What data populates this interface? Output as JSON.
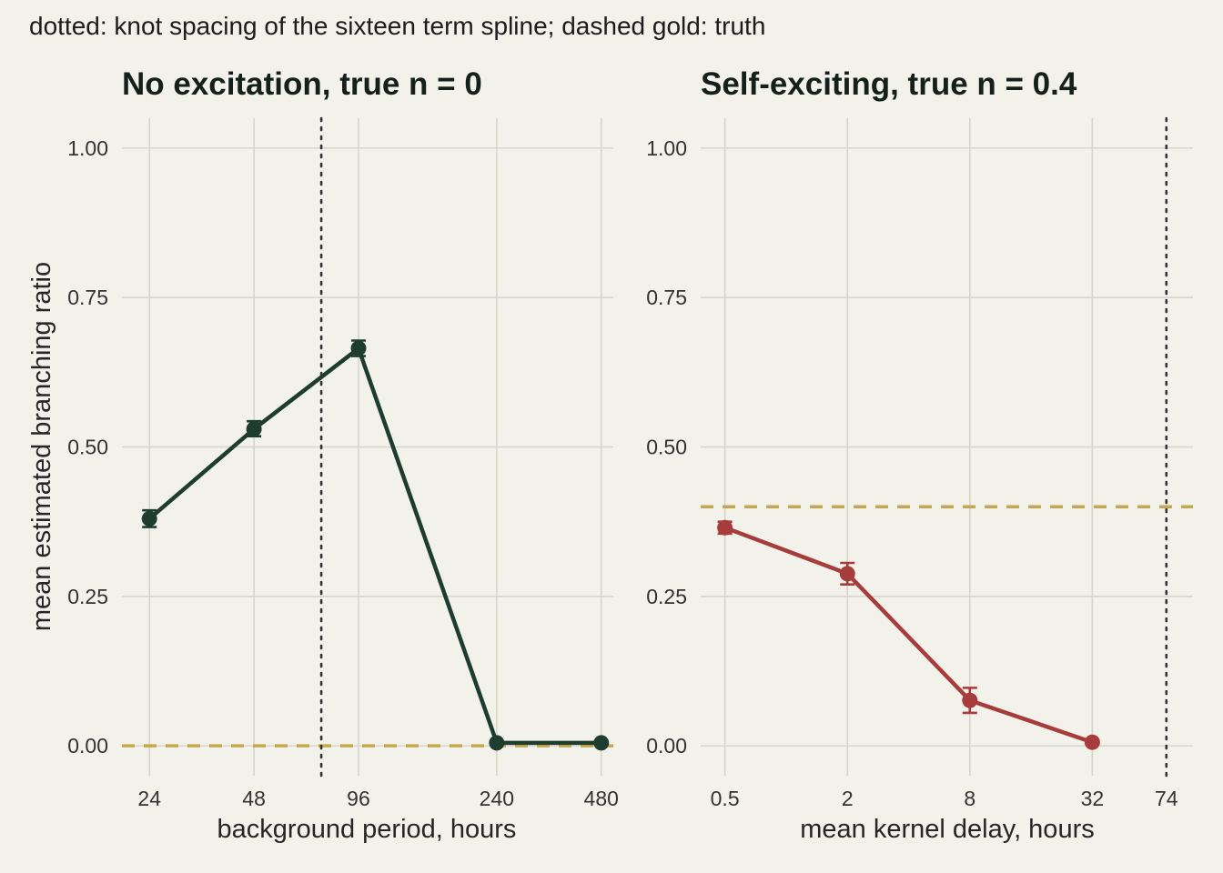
{
  "caption": "dotted: knot spacing of the sixteen term spline; dashed gold: truth",
  "colors": {
    "background": "#f2f1ea",
    "grid": "#d6d6c8",
    "truth": "#c4a84e",
    "knot": "#333333",
    "series_left": "#1f3d2e",
    "series_right": "#a63c3c"
  },
  "chart_data": [
    {
      "type": "line",
      "title": "No excitation, true n = 0",
      "xlabel": "background period, hours",
      "ylabel": "mean estimated branching ratio",
      "x_scale": "log",
      "xlim": [
        20,
        520
      ],
      "ylim": [
        -0.05,
        1.05
      ],
      "x_ticks": [
        24,
        48,
        96,
        240,
        480
      ],
      "x_tick_labels": [
        "24",
        "48",
        "96",
        "240",
        "480"
      ],
      "y_ticks": [
        0,
        0.25,
        0.5,
        0.75,
        1
      ],
      "y_tick_labels": [
        "0.00",
        "0.25",
        "0.50",
        "0.75",
        "1.00"
      ],
      "grid": true,
      "truth_line": 0,
      "knot_line_x": 75,
      "series": [
        {
          "x": [
            24,
            48,
            96,
            240,
            480
          ],
          "y": [
            0.38,
            0.53,
            0.665,
            0.005,
            0.005
          ],
          "err_low": [
            0.366,
            0.518,
            0.652,
            0.003,
            0.003
          ],
          "err_high": [
            0.394,
            0.543,
            0.678,
            0.007,
            0.007
          ]
        }
      ]
    },
    {
      "type": "line",
      "title": "Self-exciting, true n = 0.4",
      "xlabel": "mean kernel delay, hours",
      "ylabel": "",
      "x_scale": "log",
      "xlim": [
        0.38,
        100
      ],
      "ylim": [
        -0.05,
        1.05
      ],
      "x_ticks": [
        0.5,
        2,
        8,
        32,
        74
      ],
      "x_tick_labels": [
        "0.5",
        "2",
        "8",
        "32",
        "74"
      ],
      "y_ticks": [
        0,
        0.25,
        0.5,
        0.75,
        1
      ],
      "y_tick_labels": [
        "0.00",
        "0.25",
        "0.50",
        "0.75",
        "1.00"
      ],
      "grid": true,
      "truth_line": 0.4,
      "knot_line_x": 74,
      "series": [
        {
          "x": [
            0.5,
            2,
            8,
            32
          ],
          "y": [
            0.365,
            0.288,
            0.076,
            0.006
          ],
          "err_low": [
            0.355,
            0.27,
            0.055,
            0.003
          ],
          "err_high": [
            0.375,
            0.306,
            0.097,
            0.009
          ]
        }
      ]
    }
  ]
}
